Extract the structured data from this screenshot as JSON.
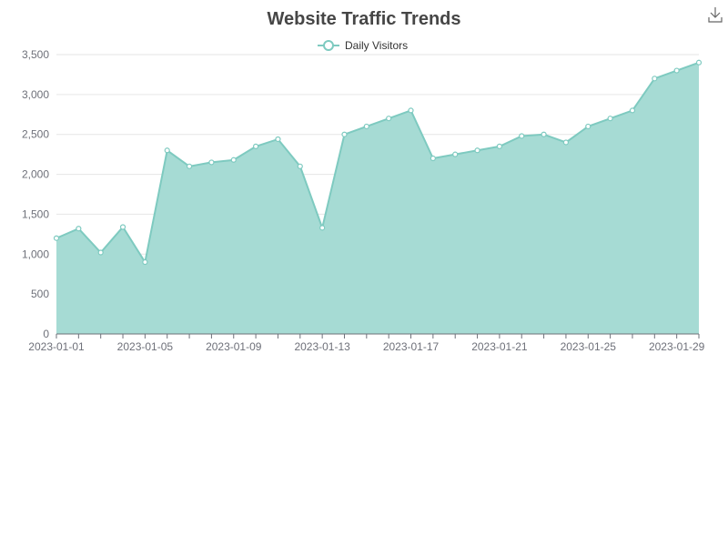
{
  "chart_data": {
    "type": "area",
    "title": "Website Traffic Trends",
    "xlabel": "",
    "ylabel": "",
    "x": [
      "2023-01-01",
      "2023-01-02",
      "2023-01-03",
      "2023-01-04",
      "2023-01-05",
      "2023-01-06",
      "2023-01-07",
      "2023-01-08",
      "2023-01-09",
      "2023-01-10",
      "2023-01-11",
      "2023-01-12",
      "2023-01-13",
      "2023-01-14",
      "2023-01-15",
      "2023-01-16",
      "2023-01-17",
      "2023-01-18",
      "2023-01-19",
      "2023-01-20",
      "2023-01-21",
      "2023-01-22",
      "2023-01-23",
      "2023-01-24",
      "2023-01-25",
      "2023-01-26",
      "2023-01-27",
      "2023-01-28",
      "2023-01-29",
      "2023-01-30"
    ],
    "x_tick_labels": [
      "2023-01-01",
      "2023-01-05",
      "2023-01-09",
      "2023-01-13",
      "2023-01-17",
      "2023-01-21",
      "2023-01-25",
      "2023-01-29"
    ],
    "series": [
      {
        "name": "Daily Visitors",
        "values": [
          1200,
          1320,
          1020,
          1340,
          900,
          2300,
          2100,
          2150,
          2180,
          2350,
          2440,
          2100,
          1330,
          2500,
          2600,
          2700,
          2800,
          2200,
          2250,
          2300,
          2350,
          2480,
          2500,
          2400,
          2600,
          2700,
          2800,
          3200,
          3300,
          3400
        ]
      }
    ],
    "ylim": [
      0,
      3500
    ],
    "y_ticks": [
      0,
      500,
      1000,
      1500,
      2000,
      2500,
      3000,
      3500
    ],
    "y_tick_labels": [
      "0",
      "500",
      "1,000",
      "1,500",
      "2,000",
      "2,500",
      "3,000",
      "3,500"
    ],
    "grid": true,
    "legend_position": "top-center",
    "colors": {
      "line": "#7ecac0",
      "area": "#a6dbd4",
      "grid": "#e6e6e6",
      "axis": "#6e7079"
    }
  },
  "toolbar": {
    "icon": "download-icon"
  }
}
